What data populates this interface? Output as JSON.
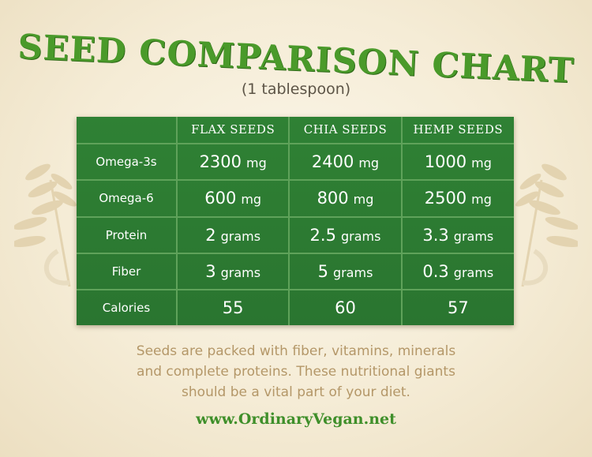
{
  "title": "SEED COMPARISON CHART",
  "subtitle": "(1 tablespoon)",
  "table": {
    "headers": [
      "",
      "FLAX SEEDS",
      "CHIA SEEDS",
      "HEMP SEEDS"
    ],
    "rows": [
      {
        "label": "Omega-3s",
        "values": [
          {
            "num": "2300",
            "unit": "mg"
          },
          {
            "num": "2400",
            "unit": "mg"
          },
          {
            "num": "1000",
            "unit": "mg"
          }
        ]
      },
      {
        "label": "Omega-6",
        "values": [
          {
            "num": "600",
            "unit": "mg"
          },
          {
            "num": "800",
            "unit": "mg"
          },
          {
            "num": "2500",
            "unit": "mg"
          }
        ]
      },
      {
        "label": "Protein",
        "values": [
          {
            "num": "2",
            "unit": "grams"
          },
          {
            "num": "2.5",
            "unit": "grams"
          },
          {
            "num": "3.3",
            "unit": "grams"
          }
        ]
      },
      {
        "label": "Fiber",
        "values": [
          {
            "num": "3",
            "unit": "grams"
          },
          {
            "num": "5",
            "unit": "grams"
          },
          {
            "num": "0.3",
            "unit": "grams"
          }
        ]
      },
      {
        "label": "Calories",
        "values": [
          {
            "num": "55",
            "unit": ""
          },
          {
            "num": "60",
            "unit": ""
          },
          {
            "num": "57",
            "unit": ""
          }
        ]
      }
    ]
  },
  "description": [
    "Seeds are packed with fiber, vitamins, minerals",
    "and complete proteins. These nutritional giants",
    "should be a vital part of your diet."
  ],
  "website": "www.OrdinaryVegan.net",
  "colors": {
    "title_green": "#4a9a2a",
    "board_green": "#2e7d32",
    "grid_line": "#5fa25a",
    "description_tan": "#b49768",
    "background": "#f5ecd6"
  }
}
